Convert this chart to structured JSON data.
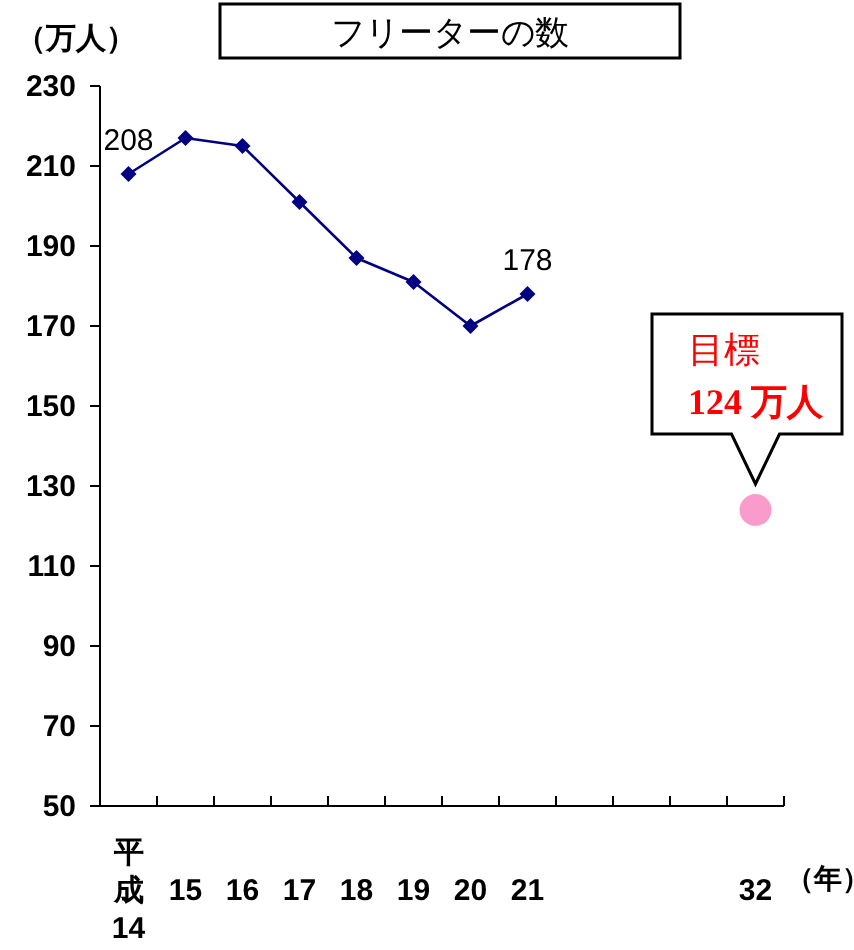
{
  "chart_data": {
    "type": "line",
    "title": "フリーターの数",
    "ylabel": "（万人）",
    "xlabel": "（年）",
    "categories": [
      "平成14",
      "15",
      "16",
      "17",
      "18",
      "19",
      "20",
      "21",
      null,
      null,
      null,
      "32"
    ],
    "ylim": [
      50,
      230
    ],
    "yticks": [
      50,
      70,
      90,
      110,
      130,
      150,
      170,
      190,
      210,
      230
    ],
    "grid": false,
    "series": [
      {
        "color": "#000080",
        "marker": "diamond",
        "values": [
          208,
          217,
          215,
          201,
          187,
          181,
          170,
          178,
          null,
          null,
          null,
          null
        ],
        "value_labels": [
          "208",
          null,
          null,
          null,
          null,
          null,
          null,
          "178",
          null,
          null,
          null,
          null
        ]
      },
      {
        "type": "scatter",
        "color": "#f99ccc",
        "marker": "circle",
        "values": [
          null,
          null,
          null,
          null,
          null,
          null,
          null,
          null,
          null,
          null,
          null,
          124
        ]
      }
    ],
    "annotations": [
      {
        "text": "目標\n**124 万人**",
        "x": "32",
        "y": 124
      }
    ]
  }
}
